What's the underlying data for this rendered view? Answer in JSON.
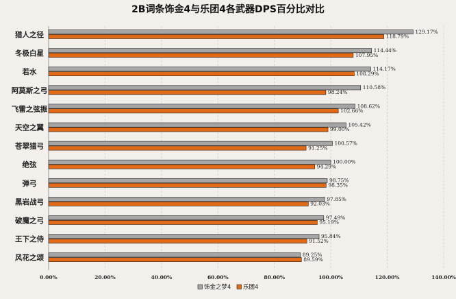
{
  "chart_data": {
    "type": "bar",
    "orientation": "horizontal",
    "title": "2B词条饰金4与乐团4各武器DPS百分比对比",
    "xlabel": "",
    "ylabel": "",
    "xlim": [
      0,
      140
    ],
    "xticks": [
      "0.00%",
      "20.00%",
      "40.00%",
      "60.00%",
      "80.00%",
      "100.00%",
      "120.00%",
      "140.00%"
    ],
    "grid": true,
    "legend_position": "bottom",
    "categories": [
      "猎人之径",
      "冬极白星",
      "若水",
      "阿莫斯之弓",
      "飞雷之弦振",
      "天空之翼",
      "苍翠猎弓",
      "绝弦",
      "弹弓",
      "黑岩战弓",
      "破魔之弓",
      "王下之侍",
      "风花之颂"
    ],
    "series": [
      {
        "name": "饰金之梦4",
        "color": "#a6a6a6",
        "values": [
          129.17,
          114.44,
          114.17,
          110.58,
          108.62,
          105.42,
          100.57,
          100.0,
          98.75,
          97.85,
          97.49,
          95.84,
          89.25
        ],
        "labels": [
          "129.17%",
          "114.44%",
          "114.17%",
          "110.58%",
          "108.62%",
          "105.42%",
          "100.57%",
          "100.00%",
          "98.75%",
          "97.85%",
          "97.49%",
          "95.84%",
          "89.25%"
        ]
      },
      {
        "name": "乐团4",
        "color": "#e06a17",
        "values": [
          118.79,
          107.95,
          108.29,
          98.24,
          102.66,
          99.0,
          91.25,
          94.29,
          98.35,
          92.03,
          95.19,
          91.52,
          89.59
        ],
        "labels": [
          "118.79%",
          "107.95%",
          "108.29%",
          "98.24%",
          "102.66%",
          "99.00%",
          "91.25%",
          "94.29%",
          "98.35%",
          "92.03%",
          "95.19%",
          "91.52%",
          "89.59%"
        ]
      }
    ]
  }
}
